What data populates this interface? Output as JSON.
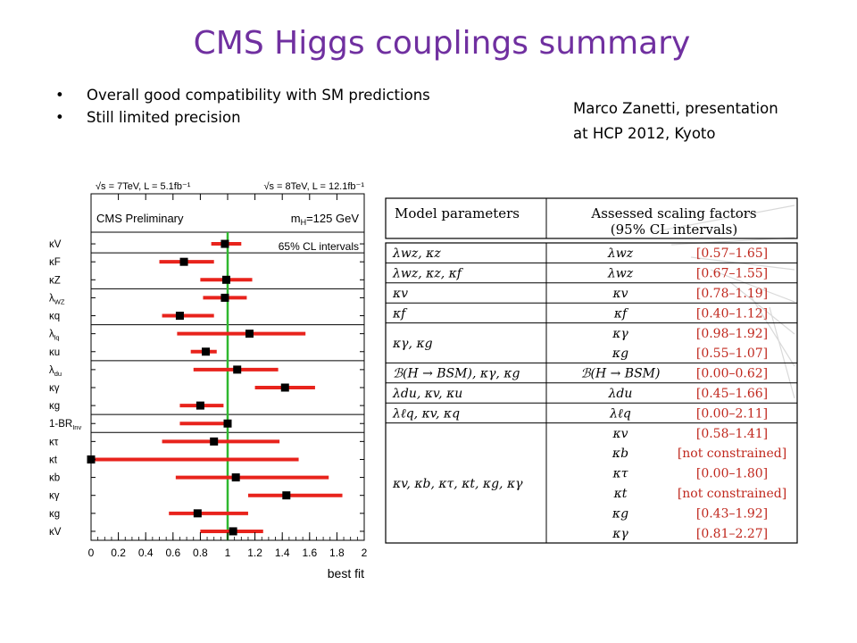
{
  "slide": {
    "title": "CMS Higgs couplings summary",
    "bullets": [
      "Overall good compatibility with SM predictions",
      "Still limited precision"
    ],
    "credit_lines": [
      "Marco Zanetti, presentation",
      "at HCP 2012, Kyoto"
    ]
  },
  "chart_data": {
    "type": "scatter",
    "header_left": "√s = 7TeV, L = 5.1fb⁻¹",
    "header_right": "√s = 8TeV, L = 12.1fb⁻¹",
    "experiment_label": "CMS Preliminary",
    "mass_label": "m",
    "mass_sub": "H",
    "mass_value": "=125 GeV",
    "legend_label": "65% CL intervals",
    "xlabel": "best fit",
    "xlim": [
      0,
      2
    ],
    "xticks": [
      "0",
      "0.2",
      "0.4",
      "0.6",
      "0.8",
      "1",
      "1.2",
      "1.4",
      "1.6",
      "1.8",
      "2"
    ],
    "sm_reference": 1.0,
    "groups": [
      1,
      2,
      2,
      2,
      3,
      1,
      6
    ],
    "rows": [
      {
        "label": "κV",
        "sub": "",
        "value": 0.98,
        "low": 0.88,
        "high": 1.1
      },
      {
        "label": "κF",
        "sub": "",
        "value": 0.68,
        "low": 0.5,
        "high": 0.9
      },
      {
        "label": "κZ",
        "sub": "",
        "value": 0.99,
        "low": 0.8,
        "high": 1.18
      },
      {
        "label": "λ",
        "sub": "WZ",
        "value": 0.98,
        "low": 0.82,
        "high": 1.14
      },
      {
        "label": "κq",
        "sub": "",
        "value": 0.65,
        "low": 0.52,
        "high": 0.9
      },
      {
        "label": "λ",
        "sub": "lq",
        "value": 1.16,
        "low": 0.63,
        "high": 1.57
      },
      {
        "label": "κu",
        "sub": "",
        "value": 0.84,
        "low": 0.73,
        "high": 0.92
      },
      {
        "label": "λ",
        "sub": "du",
        "value": 1.07,
        "low": 0.75,
        "high": 1.37
      },
      {
        "label": "κγ",
        "sub": "",
        "value": 1.42,
        "low": 1.2,
        "high": 1.64
      },
      {
        "label": "κg",
        "sub": "",
        "value": 0.8,
        "low": 0.65,
        "high": 0.97
      },
      {
        "label": "1-BR",
        "sub": "Inv",
        "value": 1.0,
        "low": 0.65,
        "high": 1.0
      },
      {
        "label": "κτ",
        "sub": "",
        "value": 0.9,
        "low": 0.52,
        "high": 1.38
      },
      {
        "label": "κt",
        "sub": "",
        "value": 0.0,
        "low": 0.0,
        "high": 1.52
      },
      {
        "label": "κb",
        "sub": "",
        "value": 1.06,
        "low": 0.62,
        "high": 1.74
      },
      {
        "label": "κγ",
        "sub": "",
        "value": 1.43,
        "low": 1.15,
        "high": 1.84
      },
      {
        "label": "κg",
        "sub": "",
        "value": 0.78,
        "low": 0.57,
        "high": 1.15
      },
      {
        "label": "κV",
        "sub": "",
        "value": 1.04,
        "low": 0.8,
        "high": 1.26
      }
    ]
  },
  "table": {
    "header_left": "Model parameters",
    "header_right_lines": [
      "Assessed scaling factors",
      "(95% CL intervals)"
    ],
    "interval_color": "#c0281e",
    "rows": [
      {
        "params": "λwz, κz",
        "factors": [
          "λwz"
        ],
        "intervals": [
          "[0.57–1.65]"
        ]
      },
      {
        "params": "λwz, κz, κf",
        "factors": [
          "λwz"
        ],
        "intervals": [
          "[0.67–1.55]"
        ]
      },
      {
        "params": "κv",
        "factors": [
          "κv"
        ],
        "intervals": [
          "[0.78–1.19]"
        ]
      },
      {
        "params": "κf",
        "factors": [
          "κf"
        ],
        "intervals": [
          "[0.40–1.12]"
        ]
      },
      {
        "params": "κγ, κg",
        "factors": [
          "κγ",
          "κg"
        ],
        "intervals": [
          "[0.98–1.92]",
          "[0.55–1.07]"
        ]
      },
      {
        "params": "ℬ(H → BSM), κγ, κg",
        "factors": [
          "ℬ(H → BSM)"
        ],
        "intervals": [
          "[0.00–0.62]"
        ]
      },
      {
        "params": "λdu, κv, κu",
        "factors": [
          "λdu"
        ],
        "intervals": [
          "[0.45–1.66]"
        ]
      },
      {
        "params": "λℓq, κv, κq",
        "factors": [
          "λℓq"
        ],
        "intervals": [
          "[0.00–2.11]"
        ]
      },
      {
        "params": "κv, κb, κτ, κt, κg, κγ",
        "factors": [
          "κv",
          "κb",
          "κτ",
          "κt",
          "κg",
          "κγ"
        ],
        "intervals": [
          "[0.58–1.41]",
          "[not constrained]",
          "[0.00–1.80]",
          "[not constrained]",
          "[0.43–1.92]",
          "[0.81–2.27]"
        ]
      }
    ]
  }
}
